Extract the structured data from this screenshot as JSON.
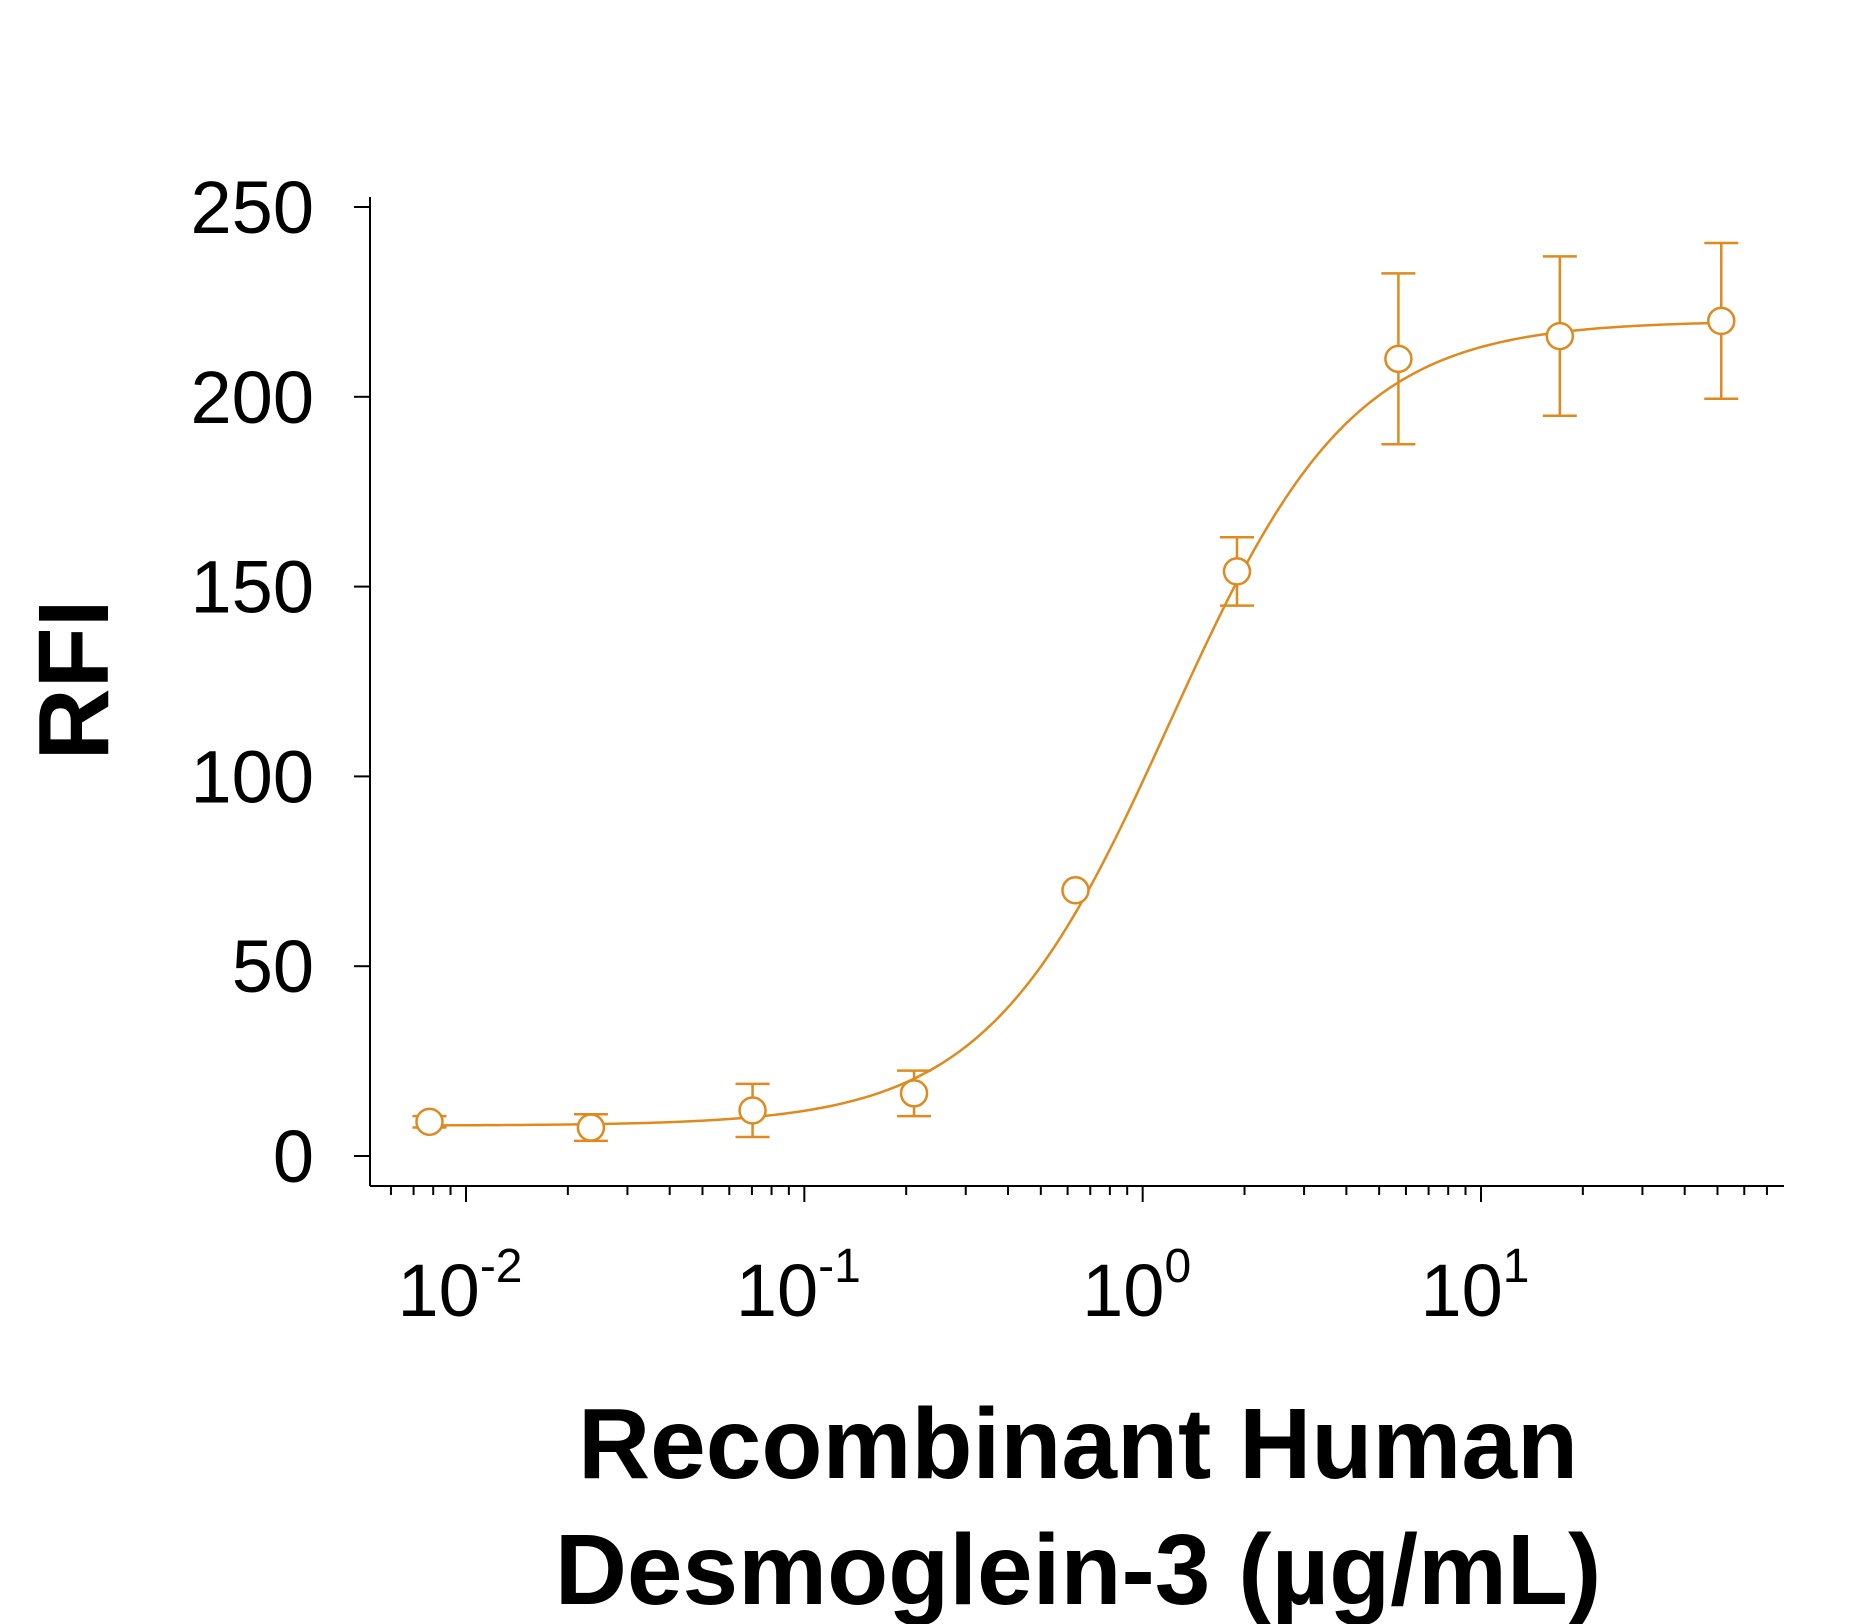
{
  "chart_data": {
    "type": "scatter",
    "ylabel": "RFI",
    "xlabel_lines": [
      "Recombinant Human",
      "Desmoglein-3 (µg/mL)"
    ],
    "x_scale": "log",
    "xlim": [
      0.0055,
      70
    ],
    "ylim": [
      -8,
      252
    ],
    "y_ticks": [
      0,
      50,
      100,
      150,
      200,
      250
    ],
    "x_ticks": [
      {
        "value": 0.01,
        "base": "10",
        "exp": "-2"
      },
      {
        "value": 0.1,
        "base": "10",
        "exp": "-1"
      },
      {
        "value": 1,
        "base": "10",
        "exp": "0"
      },
      {
        "value": 10,
        "base": "10",
        "exp": "1"
      }
    ],
    "series_color": "#E08A1E",
    "points": [
      {
        "x": 0.0078,
        "y": 9,
        "err": 1.5
      },
      {
        "x": 0.0234,
        "y": 7.5,
        "err": 3.5
      },
      {
        "x": 0.0703,
        "y": 12,
        "err": 7
      },
      {
        "x": 0.211,
        "y": 16.5,
        "err": 6
      },
      {
        "x": 0.633,
        "y": 70,
        "err": 0
      },
      {
        "x": 1.9,
        "y": 154,
        "err": 9
      },
      {
        "x": 5.7,
        "y": 210,
        "err": 22.5
      },
      {
        "x": 17.1,
        "y": 216,
        "err": 21
      },
      {
        "x": 51.3,
        "y": 220,
        "err": 20.5
      }
    ],
    "fit_curve": {
      "bottom": 8,
      "top": 220,
      "ec50": 1.2,
      "hill": 1.6
    }
  }
}
